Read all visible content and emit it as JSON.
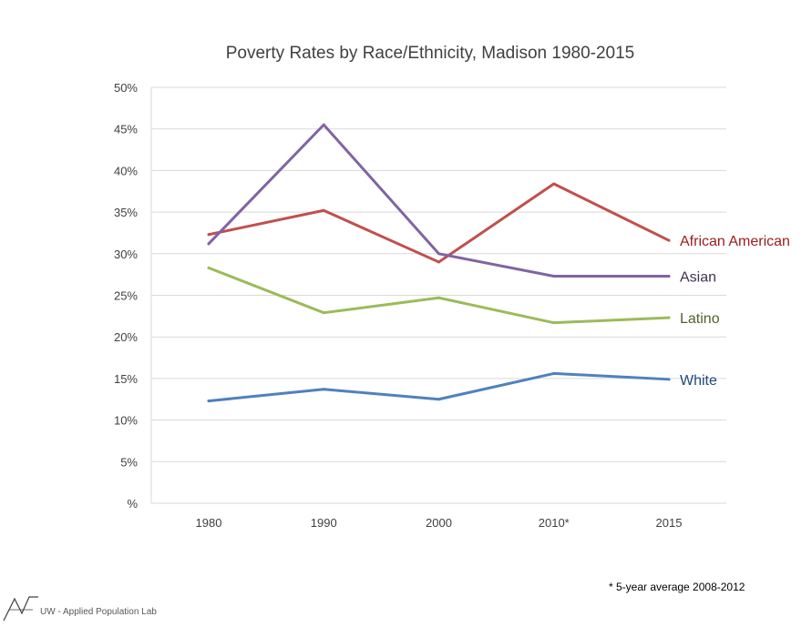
{
  "chart_data": {
    "type": "line",
    "title": "Poverty Rates by Race/Ethnicity, Madison 1980-2015",
    "categories": [
      "1980",
      "1990",
      "2000",
      "2010*",
      "2015"
    ],
    "yticks": [
      "%",
      "5%",
      "10%",
      "15%",
      "20%",
      "25%",
      "30%",
      "35%",
      "40%",
      "45%",
      "50%"
    ],
    "ylim": [
      0,
      50
    ],
    "grid": true,
    "series": [
      {
        "name": "African American",
        "color": "#C0504D",
        "label_color": "#9B1C1C",
        "values": [
          32.3,
          35.2,
          29.0,
          38.4,
          31.6
        ]
      },
      {
        "name": "Asian",
        "color": "#8064A2",
        "label_color": "#403152",
        "values": [
          31.2,
          45.5,
          30.0,
          27.3,
          27.3
        ]
      },
      {
        "name": "Latino",
        "color": "#9BBB59",
        "label_color": "#4F6228",
        "values": [
          28.3,
          22.9,
          24.7,
          21.7,
          22.3
        ]
      },
      {
        "name": "White",
        "color": "#4F81BD",
        "label_color": "#1F497D",
        "values": [
          12.3,
          13.7,
          12.5,
          15.6,
          14.9
        ]
      }
    ]
  },
  "footnote": "* 5-year average 2008-2012",
  "credit": "UW - Applied Population Lab"
}
